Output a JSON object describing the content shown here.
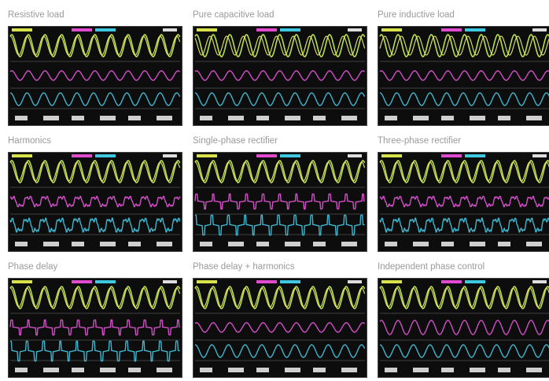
{
  "panels": [
    {
      "title": "Resistive load"
    },
    {
      "title": "Pure capacitive load"
    },
    {
      "title": "Pure inductive load"
    },
    {
      "title": "Harmonics"
    },
    {
      "title": "Single-phase rectifier"
    },
    {
      "title": "Three-phase rectifier"
    },
    {
      "title": "Phase delay"
    },
    {
      "title": "Phase delay + harmonics"
    },
    {
      "title": "Independent phase control"
    }
  ]
}
